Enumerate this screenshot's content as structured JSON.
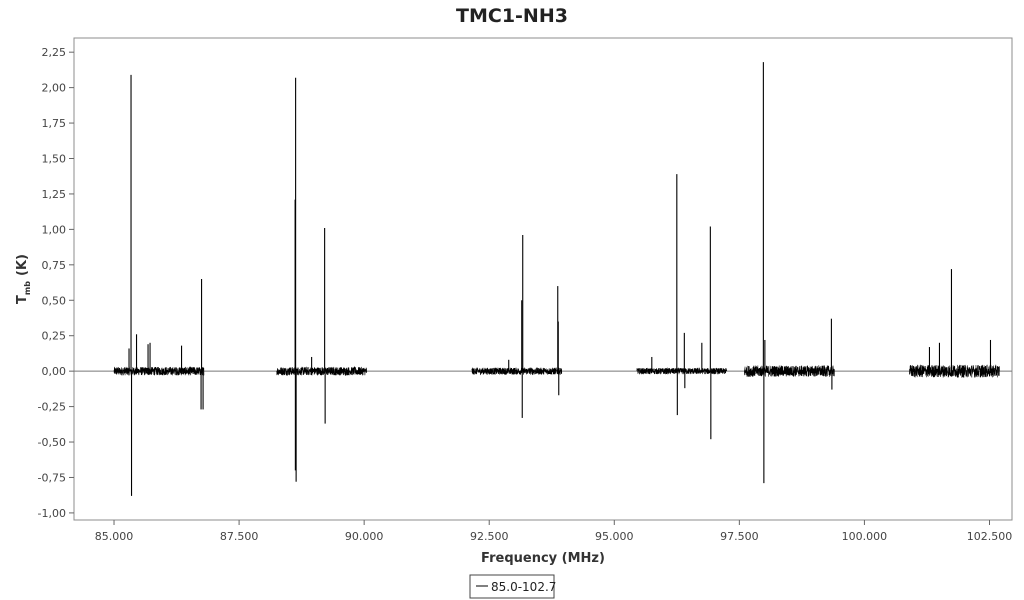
{
  "chart_data": {
    "type": "line",
    "title": "TMC1-NH3",
    "xlabel": "Frequency (MHz)",
    "ylabel_main": "T",
    "ylabel_sub": "mb",
    "ylabel_unit": "(K)",
    "xlim": [
      84200,
      102950
    ],
    "ylim": [
      -1.05,
      2.35
    ],
    "x_ticks": [
      {
        "value": 85000,
        "label": "85.000"
      },
      {
        "value": 87500,
        "label": "87.500"
      },
      {
        "value": 90000,
        "label": "90.000"
      },
      {
        "value": 92500,
        "label": "92.500"
      },
      {
        "value": 95000,
        "label": "95.000"
      },
      {
        "value": 97500,
        "label": "97.500"
      },
      {
        "value": 100000,
        "label": "100.000"
      },
      {
        "value": 102500,
        "label": "102.500"
      }
    ],
    "y_ticks": [
      {
        "value": -1.0,
        "label": "-1,00"
      },
      {
        "value": -0.75,
        "label": "-0,75"
      },
      {
        "value": -0.5,
        "label": "-0,50"
      },
      {
        "value": -0.25,
        "label": "-0,25"
      },
      {
        "value": 0.0,
        "label": "0,00"
      },
      {
        "value": 0.25,
        "label": "0,25"
      },
      {
        "value": 0.5,
        "label": "0,50"
      },
      {
        "value": 0.75,
        "label": "0,75"
      },
      {
        "value": 1.0,
        "label": "1,00"
      },
      {
        "value": 1.25,
        "label": "1,25"
      },
      {
        "value": 1.5,
        "label": "1,50"
      },
      {
        "value": 1.75,
        "label": "1,75"
      },
      {
        "value": 2.0,
        "label": "2,00"
      },
      {
        "value": 2.25,
        "label": "2,25"
      }
    ],
    "zero_line": true,
    "grid": false,
    "legend_position": "bottom-center",
    "series": [
      {
        "name": "85.0-102.7",
        "color": "#000000",
        "segments": [
          {
            "x_range": [
              85000,
              86800
            ],
            "noise": 0.03
          },
          {
            "x_range": [
              88250,
              90050
            ],
            "noise": 0.03
          },
          {
            "x_range": [
              92150,
              93950
            ],
            "noise": 0.025
          },
          {
            "x_range": [
              95450,
              97250
            ],
            "noise": 0.022
          },
          {
            "x_range": [
              97600,
              99400
            ],
            "noise": 0.04
          },
          {
            "x_range": [
              100900,
              102700
            ],
            "noise": 0.045
          }
        ],
        "peaks": [
          {
            "x": 85340,
            "y": 2.09
          },
          {
            "x": 85350,
            "y": -0.88
          },
          {
            "x": 85300,
            "y": 0.16
          },
          {
            "x": 85450,
            "y": 0.26
          },
          {
            "x": 85680,
            "y": 0.19
          },
          {
            "x": 85720,
            "y": 0.2
          },
          {
            "x": 86350,
            "y": 0.18
          },
          {
            "x": 86750,
            "y": 0.65
          },
          {
            "x": 86740,
            "y": -0.27
          },
          {
            "x": 86780,
            "y": -0.27
          },
          {
            "x": 88630,
            "y": 2.07
          },
          {
            "x": 88620,
            "y": 1.21
          },
          {
            "x": 88625,
            "y": -0.7
          },
          {
            "x": 88640,
            "y": -0.78
          },
          {
            "x": 88950,
            "y": 0.1
          },
          {
            "x": 89210,
            "y": 1.01
          },
          {
            "x": 89220,
            "y": -0.37
          },
          {
            "x": 92890,
            "y": 0.08
          },
          {
            "x": 93170,
            "y": 0.96
          },
          {
            "x": 93150,
            "y": 0.5
          },
          {
            "x": 93160,
            "y": -0.33
          },
          {
            "x": 93870,
            "y": 0.6
          },
          {
            "x": 93880,
            "y": 0.35
          },
          {
            "x": 93890,
            "y": -0.17
          },
          {
            "x": 95750,
            "y": 0.1
          },
          {
            "x": 96250,
            "y": 1.39
          },
          {
            "x": 96260,
            "y": -0.31
          },
          {
            "x": 96400,
            "y": 0.27
          },
          {
            "x": 96410,
            "y": -0.12
          },
          {
            "x": 96750,
            "y": 0.2
          },
          {
            "x": 96920,
            "y": 1.02
          },
          {
            "x": 96930,
            "y": -0.48
          },
          {
            "x": 97980,
            "y": 2.18
          },
          {
            "x": 97990,
            "y": -0.79
          },
          {
            "x": 98010,
            "y": 0.22
          },
          {
            "x": 99340,
            "y": 0.37
          },
          {
            "x": 99350,
            "y": -0.13
          },
          {
            "x": 101300,
            "y": 0.17
          },
          {
            "x": 101500,
            "y": 0.2
          },
          {
            "x": 101740,
            "y": 0.72
          },
          {
            "x": 102520,
            "y": 0.22
          }
        ]
      }
    ]
  }
}
